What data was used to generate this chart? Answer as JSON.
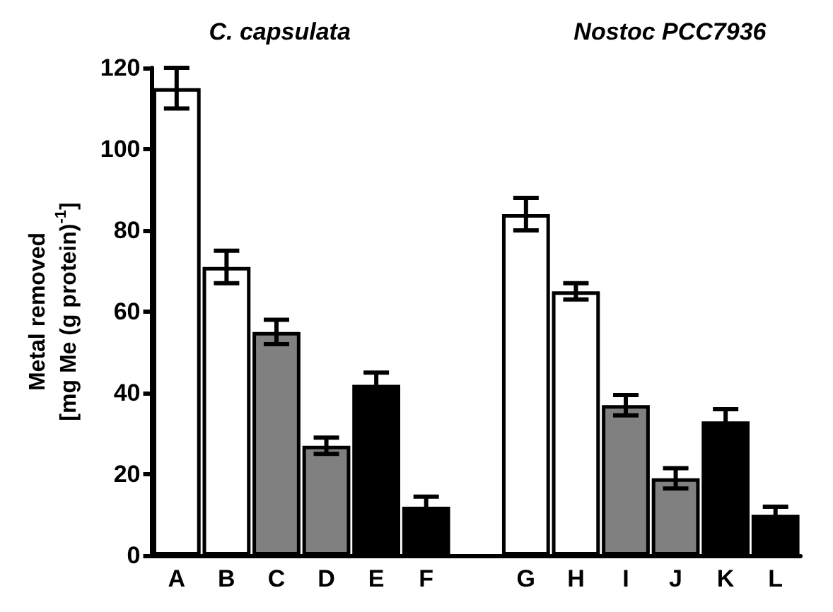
{
  "chart_data": {
    "type": "bar",
    "ylabel": "Metal removed\n[mg Me (g protein)$^{-1}$]",
    "categories": [
      "A",
      "B",
      "C",
      "D",
      "E",
      "F",
      null,
      "G",
      "H",
      "I",
      "J",
      "K",
      "L"
    ],
    "values": [
      115,
      71,
      55,
      27,
      42,
      12,
      null,
      84,
      65,
      37,
      19,
      33,
      10
    ],
    "errors": [
      5,
      4,
      3,
      2,
      3,
      2.5,
      null,
      4,
      2,
      2.5,
      2.5,
      3,
      2
    ],
    "colors": [
      "#ffffff",
      "#ffffff",
      "#808080",
      "#808080",
      "#000000",
      "#000000",
      "#ffffff",
      "#ffffff",
      "#ffffff",
      "#808080",
      "#808080",
      "#000000",
      "#000000"
    ],
    "ylim": [
      0,
      120
    ],
    "yticks": [
      0,
      20,
      40,
      60,
      80,
      100,
      120
    ],
    "annotations": [
      "C. capsulata",
      "Nostoc PCC7936"
    ]
  }
}
